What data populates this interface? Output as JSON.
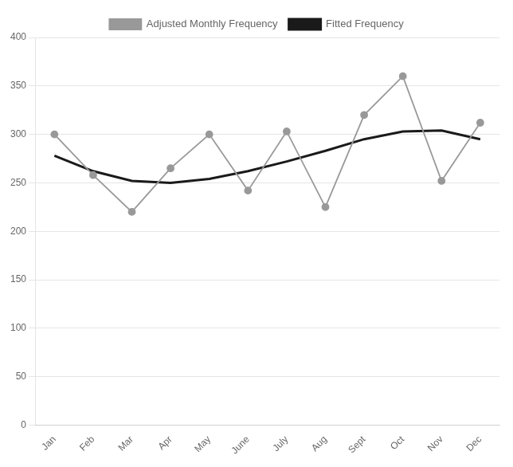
{
  "chart_data": {
    "type": "line",
    "categories": [
      "Jan",
      "Feb",
      "Mar",
      "Apr",
      "May",
      "June",
      "July",
      "Aug",
      "Sept",
      "Oct",
      "Nov",
      "Dec"
    ],
    "series": [
      {
        "name": "Adjusted Monthly Frequency",
        "color": "#999999",
        "marker": "circle",
        "values": [
          300,
          258,
          220,
          265,
          300,
          242,
          303,
          225,
          320,
          360,
          252,
          312
        ]
      },
      {
        "name": "Fitted Frequency",
        "color": "#1a1a1a",
        "marker": "none",
        "values": [
          278,
          262,
          252,
          250,
          254,
          262,
          272,
          283,
          295,
          303,
          304,
          295
        ]
      }
    ],
    "ylim": [
      0,
      400
    ],
    "yticks": [
      0,
      50,
      100,
      150,
      200,
      250,
      300,
      350,
      400
    ],
    "grid": "y",
    "legend": "top"
  }
}
